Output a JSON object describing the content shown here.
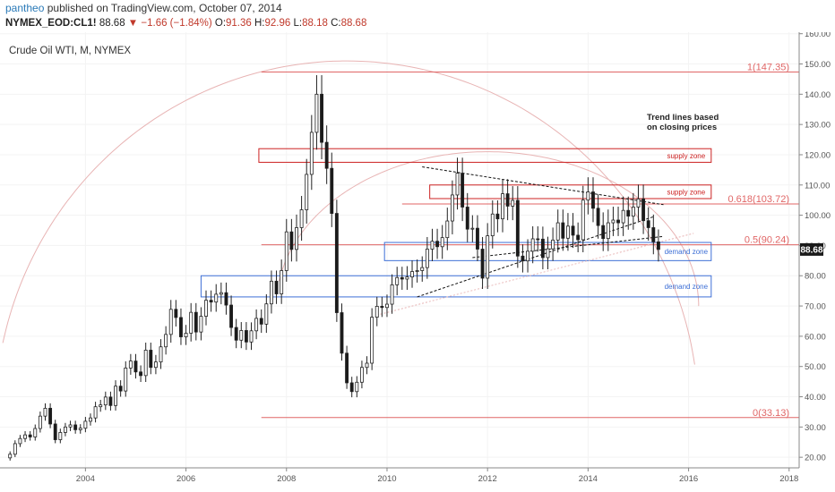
{
  "header": {
    "author": "pantheo",
    "published_text": "published on TradingView.com, October 07, 2014",
    "symbol": "NYMEX_EOD:CL1!",
    "last": "88.68",
    "arrow": "▼",
    "change": "−1.66 (−1.84%)",
    "o_label": "O:",
    "o_value": "91.36",
    "h_label": "H:",
    "h_value": "92.96",
    "l_label": "L:",
    "l_value": "88.18",
    "c_label": "C:",
    "c_value": "88.68"
  },
  "colors": {
    "up": "#ffffff",
    "down": "#1a1a1a",
    "fib": "#e06666",
    "supply": "#cc2222",
    "demand": "#3d6fd6",
    "arc": "#e8b4b4",
    "grid": "#f3f3f3"
  },
  "chart_data": {
    "type": "candlestick",
    "title": "Crude Oil WTI, M, NYMEX",
    "x_range": [
      2002.3,
      2018.2
    ],
    "y_range": [
      16.5,
      160.5
    ],
    "y_ticks": [
      "20.00",
      "30.00",
      "40.00",
      "50.00",
      "60.00",
      "70.00",
      "80.00",
      "90.00",
      "100.00",
      "110.00",
      "120.00",
      "130.00",
      "140.00",
      "150.00",
      "160.00"
    ],
    "x_ticks": [
      "2004",
      "2006",
      "2008",
      "2010",
      "2012",
      "2014",
      "2016",
      "2018"
    ],
    "last_price_label": "88.68",
    "last_price": 88.68,
    "fib_levels": [
      {
        "label": "1(147.35)",
        "value": 147.35,
        "start": 2007.5
      },
      {
        "label": "0.618(103.72)",
        "value": 103.72,
        "start": 2010.3
      },
      {
        "label": "0.5(90.24)",
        "value": 90.24,
        "start": 2007.5
      },
      {
        "label": "0(33.13)",
        "value": 33.13,
        "start": 2007.5
      }
    ],
    "zones": [
      {
        "label": "supply zone",
        "kind": "supply",
        "x0": 2007.45,
        "x1": 2016.45,
        "y0": 117.5,
        "y1": 122.0
      },
      {
        "label": "supply zone",
        "kind": "supply",
        "x0": 2010.85,
        "x1": 2016.45,
        "y0": 105.5,
        "y1": 110.0
      },
      {
        "label": "demand zone",
        "kind": "demand",
        "x0": 2009.95,
        "x1": 2016.45,
        "y0": 85.0,
        "y1": 91.0
      },
      {
        "label": "demand zone",
        "kind": "demand",
        "x0": 2006.3,
        "x1": 2016.45,
        "y0": 73.0,
        "y1": 80.0
      }
    ],
    "annotation": [
      "Trend lines based",
      "on closing prices"
    ],
    "closes": [
      [
        2002.4,
        19.8
      ],
      [
        2002.5,
        21.0
      ],
      [
        2002.6,
        24.5
      ],
      [
        2002.7,
        26.2
      ],
      [
        2002.8,
        27.4
      ],
      [
        2002.9,
        26.7
      ],
      [
        2003.0,
        29.5
      ],
      [
        2003.1,
        33.6
      ],
      [
        2003.2,
        36.2
      ],
      [
        2003.3,
        31.0
      ],
      [
        2003.4,
        25.8
      ],
      [
        2003.5,
        28.2
      ],
      [
        2003.6,
        30.0
      ],
      [
        2003.7,
        30.7
      ],
      [
        2003.8,
        29.1
      ],
      [
        2003.9,
        29.6
      ],
      [
        2004.0,
        31.9
      ],
      [
        2004.1,
        33.0
      ],
      [
        2004.2,
        36.7
      ],
      [
        2004.3,
        37.3
      ],
      [
        2004.4,
        39.9
      ],
      [
        2004.5,
        37.1
      ],
      [
        2004.6,
        43.5
      ],
      [
        2004.7,
        41.9
      ],
      [
        2004.8,
        49.5
      ],
      [
        2004.9,
        51.8
      ],
      [
        2005.0,
        48.2
      ],
      [
        2005.1,
        47.0
      ],
      [
        2005.2,
        55.4
      ],
      [
        2005.3,
        49.7
      ],
      [
        2005.4,
        51.5
      ],
      [
        2005.5,
        56.5
      ],
      [
        2005.6,
        60.6
      ],
      [
        2005.7,
        68.9
      ],
      [
        2005.8,
        66.2
      ],
      [
        2005.9,
        59.8
      ],
      [
        2006.0,
        61.0
      ],
      [
        2006.1,
        67.9
      ],
      [
        2006.2,
        61.4
      ],
      [
        2006.3,
        66.6
      ],
      [
        2006.4,
        71.9
      ],
      [
        2006.5,
        71.3
      ],
      [
        2006.6,
        73.9
      ],
      [
        2006.7,
        74.4
      ],
      [
        2006.8,
        70.3
      ],
      [
        2006.9,
        62.9
      ],
      [
        2007.0,
        58.7
      ],
      [
        2007.1,
        61.9
      ],
      [
        2007.2,
        58.1
      ],
      [
        2007.3,
        61.8
      ],
      [
        2007.4,
        65.9
      ],
      [
        2007.5,
        64.0
      ],
      [
        2007.6,
        70.7
      ],
      [
        2007.7,
        78.2
      ],
      [
        2007.8,
        74.0
      ],
      [
        2007.9,
        81.7
      ],
      [
        2008.0,
        94.5
      ],
      [
        2008.1,
        88.7
      ],
      [
        2008.2,
        95.9
      ],
      [
        2008.3,
        101.8
      ],
      [
        2008.4,
        113.5
      ],
      [
        2008.5,
        127.4
      ],
      [
        2008.6,
        140.0
      ],
      [
        2008.7,
        124.1
      ],
      [
        2008.8,
        115.5
      ],
      [
        2008.9,
        100.6
      ],
      [
        2009.0,
        67.8
      ],
      [
        2009.1,
        54.4
      ],
      [
        2009.2,
        44.6
      ],
      [
        2009.3,
        41.7
      ],
      [
        2009.4,
        44.8
      ],
      [
        2009.5,
        49.7
      ],
      [
        2009.6,
        51.1
      ],
      [
        2009.7,
        66.3
      ],
      [
        2009.8,
        69.9
      ],
      [
        2009.9,
        69.5
      ],
      [
        2010.0,
        70.6
      ],
      [
        2010.1,
        77.0
      ],
      [
        2010.2,
        79.4
      ],
      [
        2010.3,
        78.9
      ],
      [
        2010.4,
        79.6
      ],
      [
        2010.5,
        81.4
      ],
      [
        2010.6,
        81.7
      ],
      [
        2010.7,
        82.7
      ],
      [
        2010.8,
        88.8
      ],
      [
        2010.9,
        91.4
      ],
      [
        2011.0,
        89.6
      ],
      [
        2011.1,
        92.6
      ],
      [
        2011.2,
        98.1
      ],
      [
        2011.3,
        106.7
      ],
      [
        2011.4,
        113.9
      ],
      [
        2011.5,
        102.7
      ],
      [
        2011.6,
        95.4
      ],
      [
        2011.7,
        95.7
      ],
      [
        2011.8,
        88.8
      ],
      [
        2011.9,
        79.2
      ],
      [
        2012.0,
        93.2
      ],
      [
        2012.1,
        100.4
      ],
      [
        2012.2,
        98.8
      ],
      [
        2012.3,
        107.1
      ],
      [
        2012.4,
        103.0
      ],
      [
        2012.5,
        104.9
      ],
      [
        2012.6,
        86.5
      ],
      [
        2012.7,
        84.9
      ],
      [
        2012.8,
        88.1
      ],
      [
        2012.9,
        92.2
      ],
      [
        2013.0,
        92.1
      ],
      [
        2013.1,
        86.0
      ],
      [
        2013.2,
        88.9
      ],
      [
        2013.3,
        91.8
      ],
      [
        2013.4,
        97.5
      ],
      [
        2013.5,
        92.4
      ],
      [
        2013.6,
        96.4
      ],
      [
        2013.7,
        93.4
      ],
      [
        2013.8,
        91.9
      ],
      [
        2013.9,
        105.0
      ],
      [
        2014.0,
        107.7
      ],
      [
        2014.1,
        102.3
      ],
      [
        2014.2,
        96.6
      ],
      [
        2014.3,
        92.3
      ],
      [
        2014.4,
        97.5
      ],
      [
        2014.5,
        98.4
      ],
      [
        2014.6,
        97.5
      ],
      [
        2014.7,
        101.6
      ],
      [
        2014.8,
        99.7
      ],
      [
        2014.9,
        102.7
      ],
      [
        2015.0,
        105.4
      ],
      [
        2015.1,
        98.2
      ],
      [
        2015.2,
        95.9
      ],
      [
        2015.3,
        91.2
      ],
      [
        2015.4,
        88.7
      ]
    ]
  }
}
